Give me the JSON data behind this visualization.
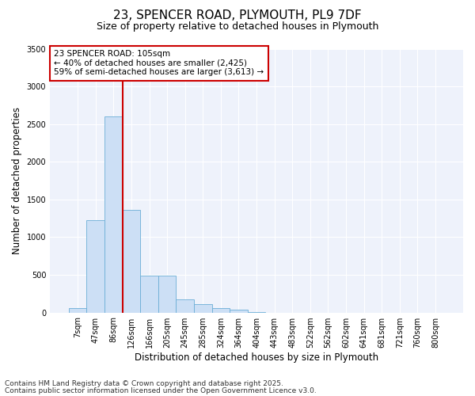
{
  "title_line1": "23, SPENCER ROAD, PLYMOUTH, PL9 7DF",
  "title_line2": "Size of property relative to detached houses in Plymouth",
  "xlabel": "Distribution of detached houses by size in Plymouth",
  "ylabel": "Number of detached properties",
  "categories": [
    "7sqm",
    "47sqm",
    "86sqm",
    "126sqm",
    "166sqm",
    "205sqm",
    "245sqm",
    "285sqm",
    "324sqm",
    "364sqm",
    "404sqm",
    "443sqm",
    "483sqm",
    "522sqm",
    "562sqm",
    "602sqm",
    "641sqm",
    "681sqm",
    "721sqm",
    "760sqm",
    "800sqm"
  ],
  "values": [
    60,
    1230,
    2600,
    1360,
    490,
    490,
    175,
    115,
    55,
    40,
    5,
    0,
    0,
    0,
    0,
    0,
    0,
    0,
    0,
    0,
    0
  ],
  "bar_color": "#ccdff5",
  "bar_edge_color": "#6baed6",
  "red_line_x": 2.5,
  "red_line_color": "#cc0000",
  "ylim": [
    0,
    3500
  ],
  "yticks": [
    0,
    500,
    1000,
    1500,
    2000,
    2500,
    3000,
    3500
  ],
  "annotation_title": "23 SPENCER ROAD: 105sqm",
  "annotation_line1": "← 40% of detached houses are smaller (2,425)",
  "annotation_line2": "59% of semi-detached houses are larger (3,613) →",
  "annotation_box_color": "#cc0000",
  "background_color": "#eef2fb",
  "grid_color": "#ffffff",
  "footer_line1": "Contains HM Land Registry data © Crown copyright and database right 2025.",
  "footer_line2": "Contains public sector information licensed under the Open Government Licence v3.0.",
  "title_fontsize": 11,
  "subtitle_fontsize": 9,
  "axis_label_fontsize": 8.5,
  "tick_fontsize": 7,
  "annotation_fontsize": 7.5,
  "footer_fontsize": 6.5
}
